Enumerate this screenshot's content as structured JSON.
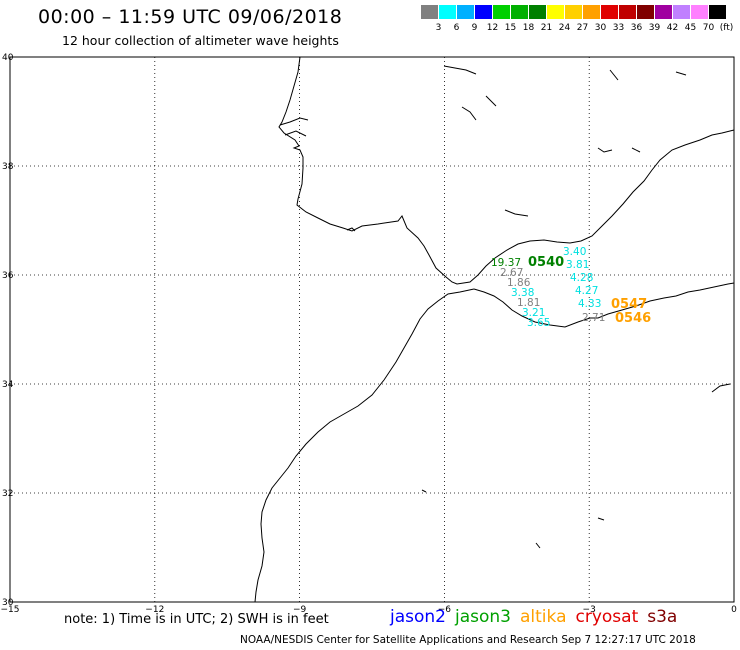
{
  "header": {
    "title": "00:00 – 11:59 UTC 09/06/2018",
    "subtitle": "12 hour collection of altimeter wave heights"
  },
  "color_scale": {
    "colors": [
      "#808080",
      "#00ffff",
      "#00b0ff",
      "#0000ff",
      "#00d000",
      "#00b000",
      "#008000",
      "#ffff00",
      "#ffd000",
      "#ffa000",
      "#e00000",
      "#c00000",
      "#800000",
      "#a000a0",
      "#c080ff",
      "#ff80ff",
      "#000000"
    ],
    "labels": [
      "3",
      "6",
      "9",
      "12",
      "15",
      "18",
      "21",
      "24",
      "27",
      "30",
      "33",
      "36",
      "39",
      "42",
      "45",
      "70",
      "(ft)"
    ]
  },
  "map": {
    "lon_ticks": [
      "−15",
      "−12",
      "−9",
      "−6",
      "−3",
      "0"
    ],
    "lat_ticks": [
      "40",
      "38",
      "36",
      "34",
      "32",
      "30"
    ],
    "grid_style": "dotted",
    "coastline_color": "#000000"
  },
  "observations": [
    {
      "value": "19.37",
      "color": "#008000"
    },
    {
      "value": "2.67",
      "color": "#808080"
    },
    {
      "value": "1.86",
      "color": "#808080"
    },
    {
      "value": "3.38",
      "color": "#00e0e0"
    },
    {
      "value": "1.81",
      "color": "#808080"
    },
    {
      "value": "3.21",
      "color": "#00e0e0"
    },
    {
      "value": "3.65",
      "color": "#00e0e0"
    },
    {
      "value": "3.40",
      "color": "#00e0e0"
    },
    {
      "value": "3.81",
      "color": "#00e0e0"
    },
    {
      "value": "4.28",
      "color": "#00e0e0"
    },
    {
      "value": "4.27",
      "color": "#00e0e0"
    },
    {
      "value": "4.33",
      "color": "#00e0e0"
    },
    {
      "value": "2.71",
      "color": "#808080"
    }
  ],
  "pass_times": [
    {
      "value": "0540",
      "color": "#008000"
    },
    {
      "value": "0547",
      "color": "#ffa000"
    },
    {
      "value": "0546",
      "color": "#ffa000"
    }
  ],
  "footer": {
    "note": "note: 1) Time is in UTC; 2) SWH is in feet",
    "credit": "NOAA/NESDIS Center for Satellite Applications and Research   Sep  7 12:27:17 UTC 2018"
  },
  "legend": [
    {
      "name": "jason2",
      "color": "#0000ff"
    },
    {
      "name": "jason3",
      "color": "#00a000"
    },
    {
      "name": "altika",
      "color": "#ffa000"
    },
    {
      "name": "cryosat",
      "color": "#e00000"
    },
    {
      "name": "s3a",
      "color": "#800000"
    }
  ]
}
